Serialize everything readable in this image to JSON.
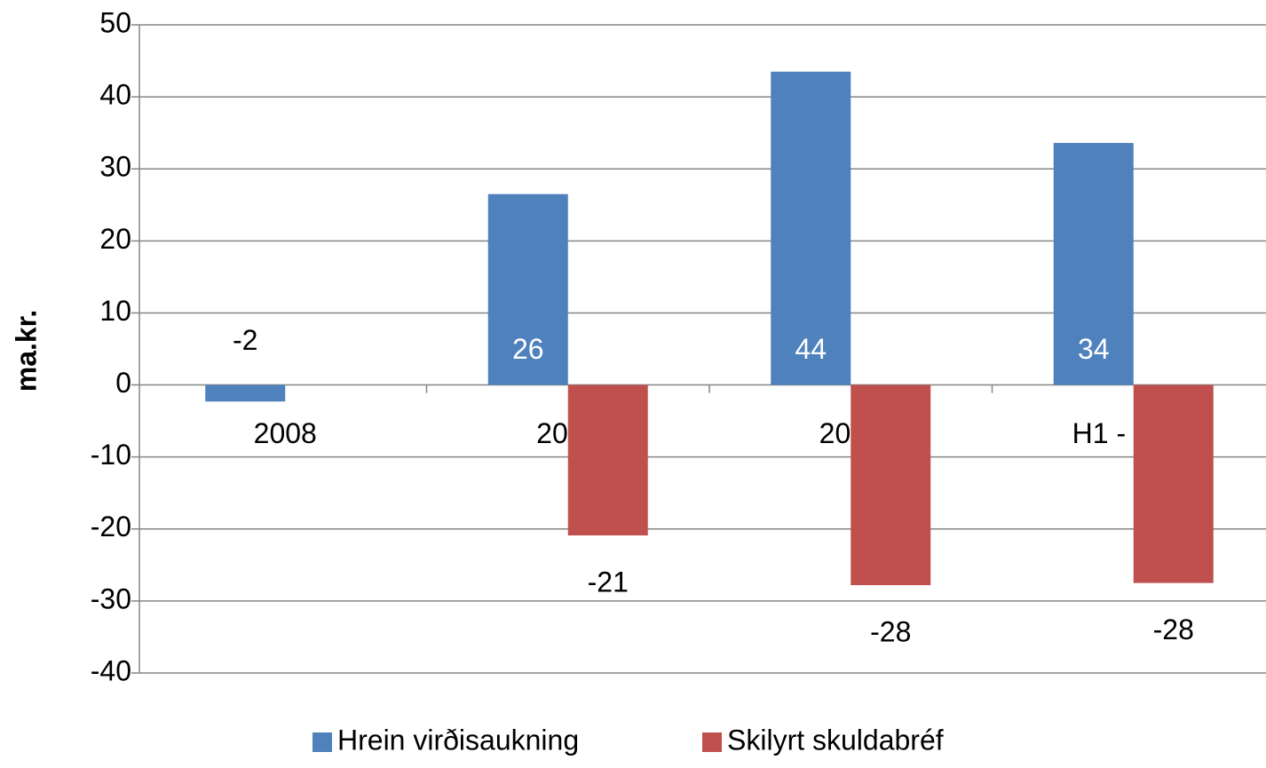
{
  "chart_data": {
    "type": "bar",
    "y_label": "ma.kr.",
    "categories": [
      "2008",
      "2009",
      "2010",
      "H1 - 2011"
    ],
    "series": [
      {
        "name": "Hrein virðisaukning",
        "color": "#4f81bd",
        "values": [
          -2.3,
          26.5,
          43.5,
          33.6
        ],
        "value_labels": [
          "-2",
          "26",
          "44",
          "34"
        ]
      },
      {
        "name": "Skilyrt skuldabréf",
        "color": "#c0504d",
        "values": [
          null,
          -20.9,
          -27.8,
          -27.5
        ],
        "value_labels": [
          null,
          "-21",
          "-28",
          "-28"
        ]
      }
    ],
    "ylim": [
      -40,
      50
    ],
    "yticks": [
      -40,
      -30,
      -20,
      -10,
      0,
      10,
      20,
      30,
      40,
      50
    ],
    "grid": true,
    "legend": "bottom"
  }
}
